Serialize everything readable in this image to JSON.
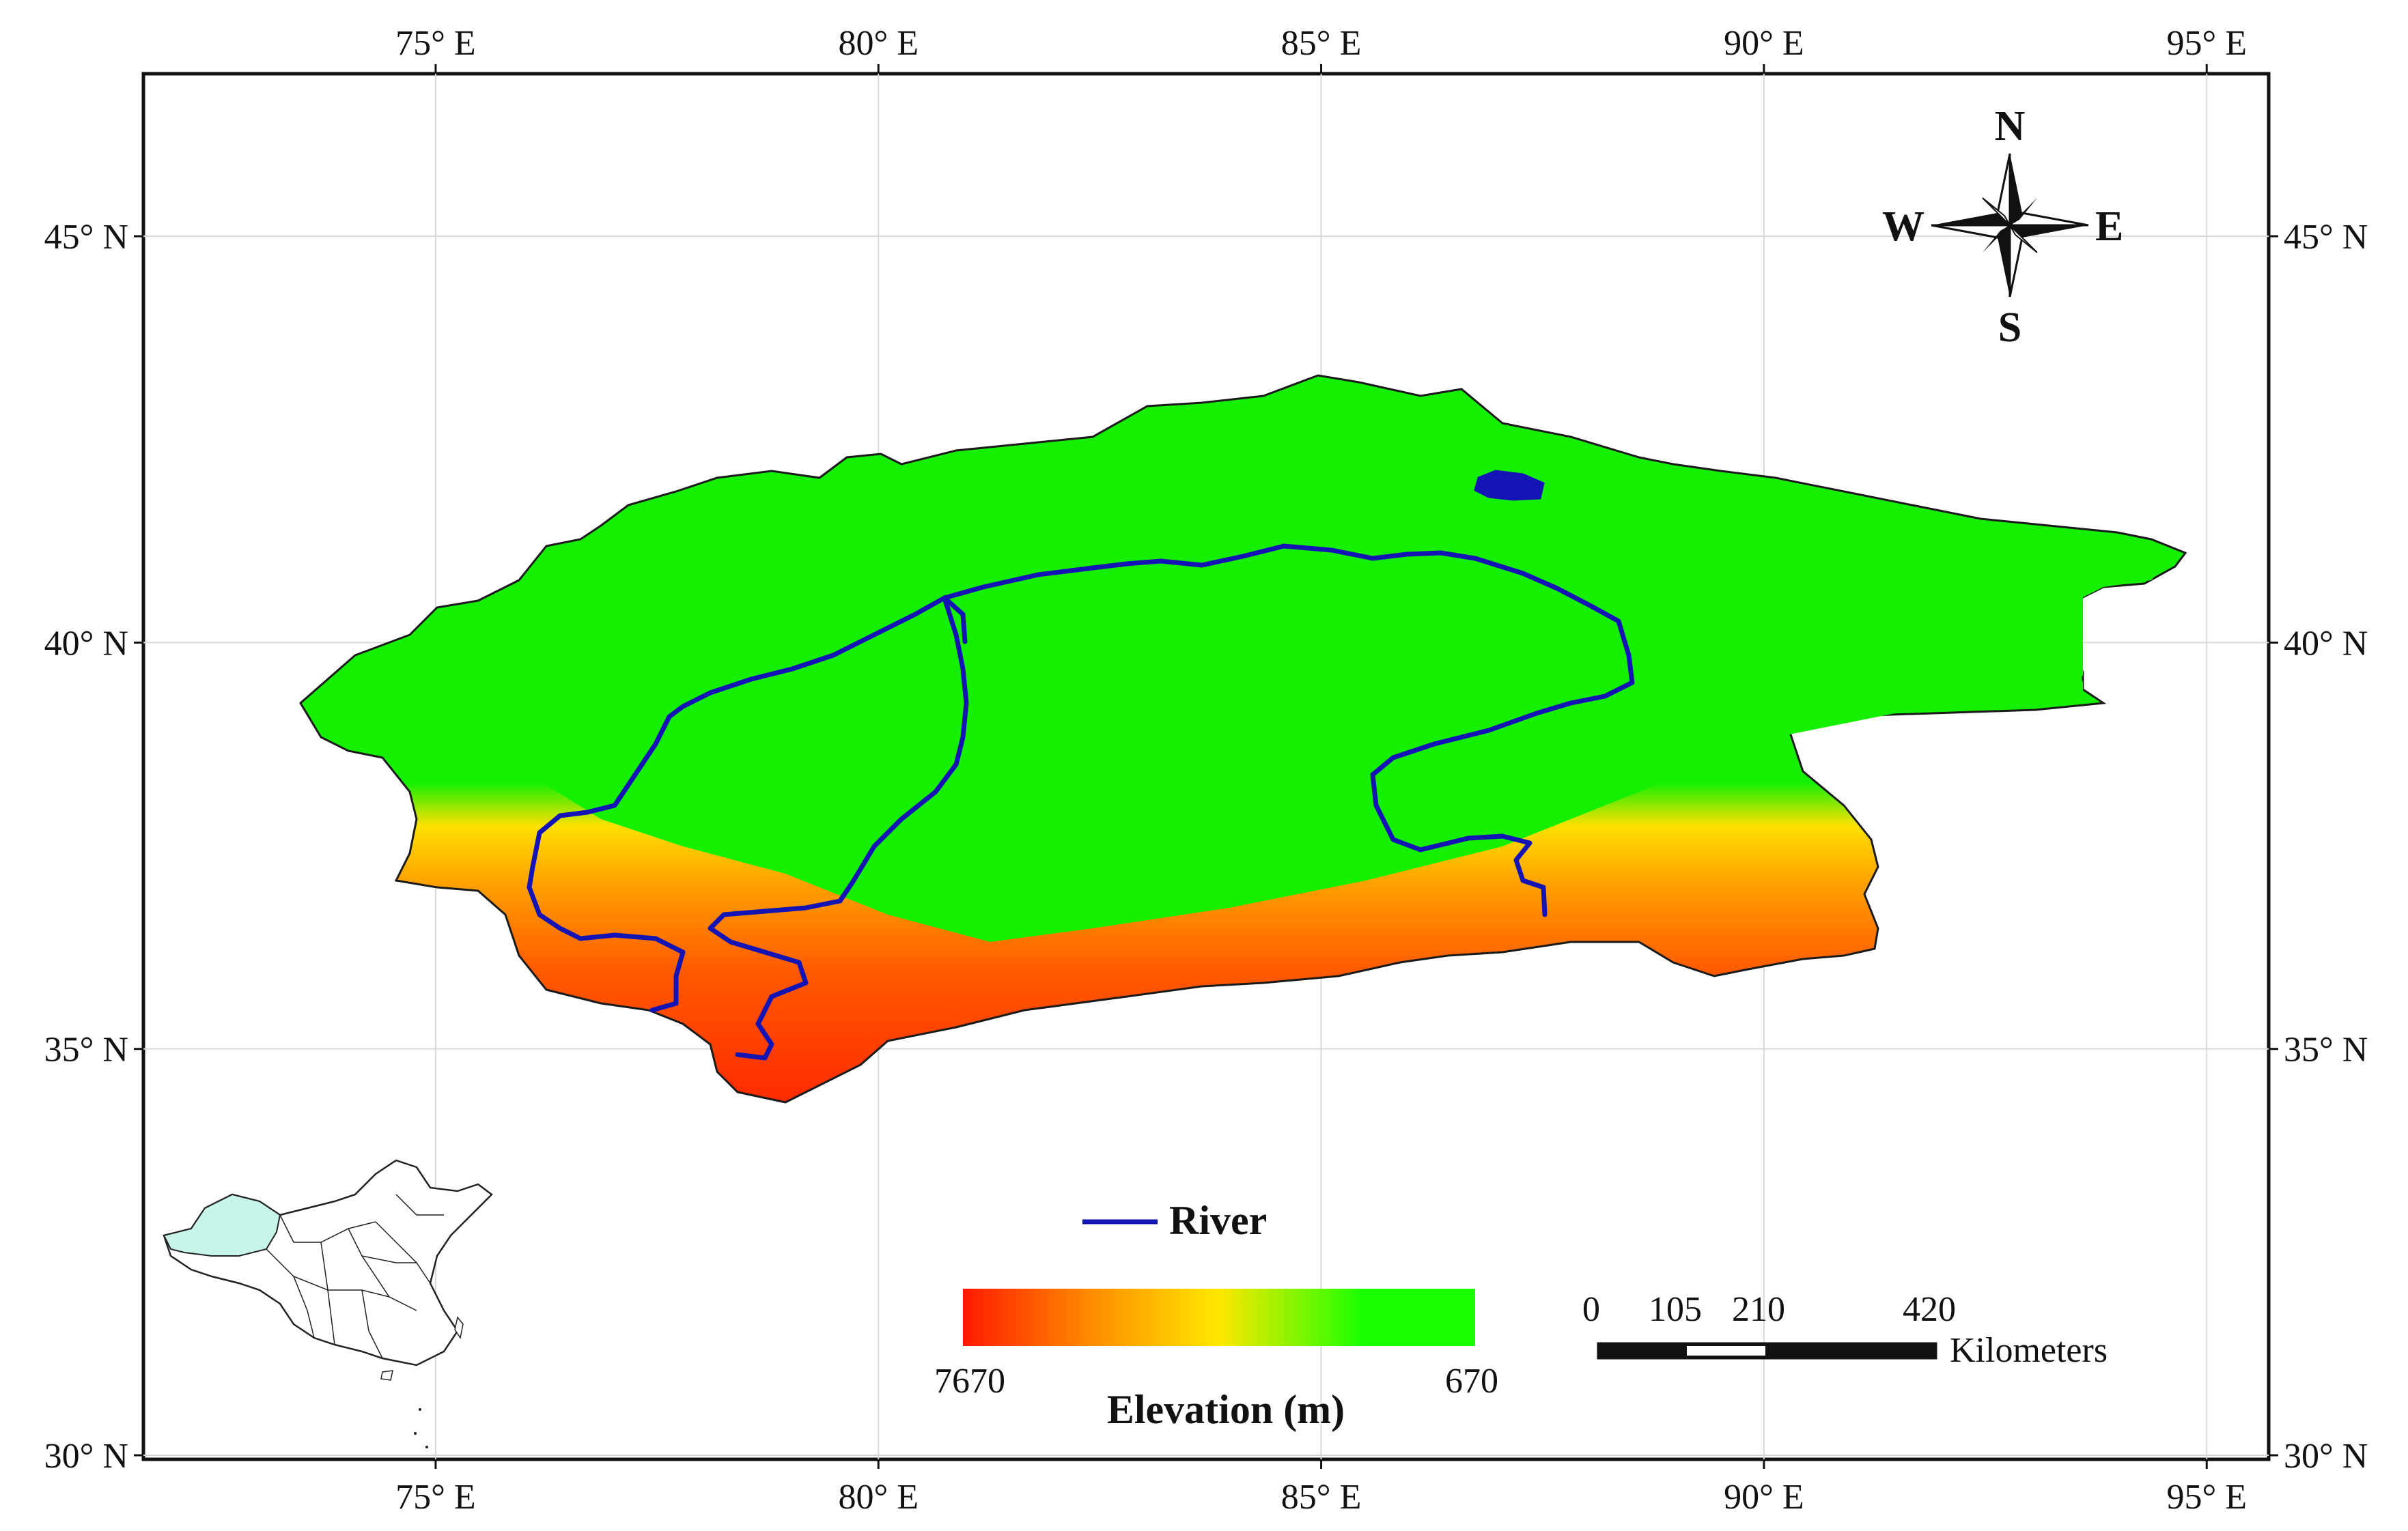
{
  "grid": {
    "x_ticks": [
      {
        "value": 75,
        "label": "75° E"
      },
      {
        "value": 80,
        "label": "80° E"
      },
      {
        "value": 85,
        "label": "85° E"
      },
      {
        "value": 90,
        "label": "90° E"
      },
      {
        "value": 95,
        "label": "95° E"
      }
    ],
    "y_ticks": [
      {
        "value": 45,
        "label": "45° N"
      },
      {
        "value": 40,
        "label": "40° N"
      },
      {
        "value": 35,
        "label": "35° N"
      },
      {
        "value": 30,
        "label": "30° N"
      }
    ],
    "lon_range": [
      71.7,
      95.7
    ],
    "lat_range": [
      29.95,
      47.0
    ]
  },
  "compass": {
    "north": "N",
    "south": "S",
    "east": "E",
    "west": "W"
  },
  "legend": {
    "river_label": "River",
    "river_color": "#1414b4",
    "elevation_title": "Elevation (m)",
    "elevation_high": "7670",
    "elevation_low": "670",
    "ramp_colors": [
      "#ff1a00",
      "#ff8c00",
      "#ffe800",
      "#1aff00"
    ]
  },
  "scale_bar": {
    "labels": [
      "0",
      "105",
      "210",
      "420"
    ],
    "unit": "Kilometers"
  },
  "colors": {
    "basin_green": "#14f000",
    "basin_outline": "#1a1a1a",
    "inset_highlight": "#c8f5ea"
  }
}
